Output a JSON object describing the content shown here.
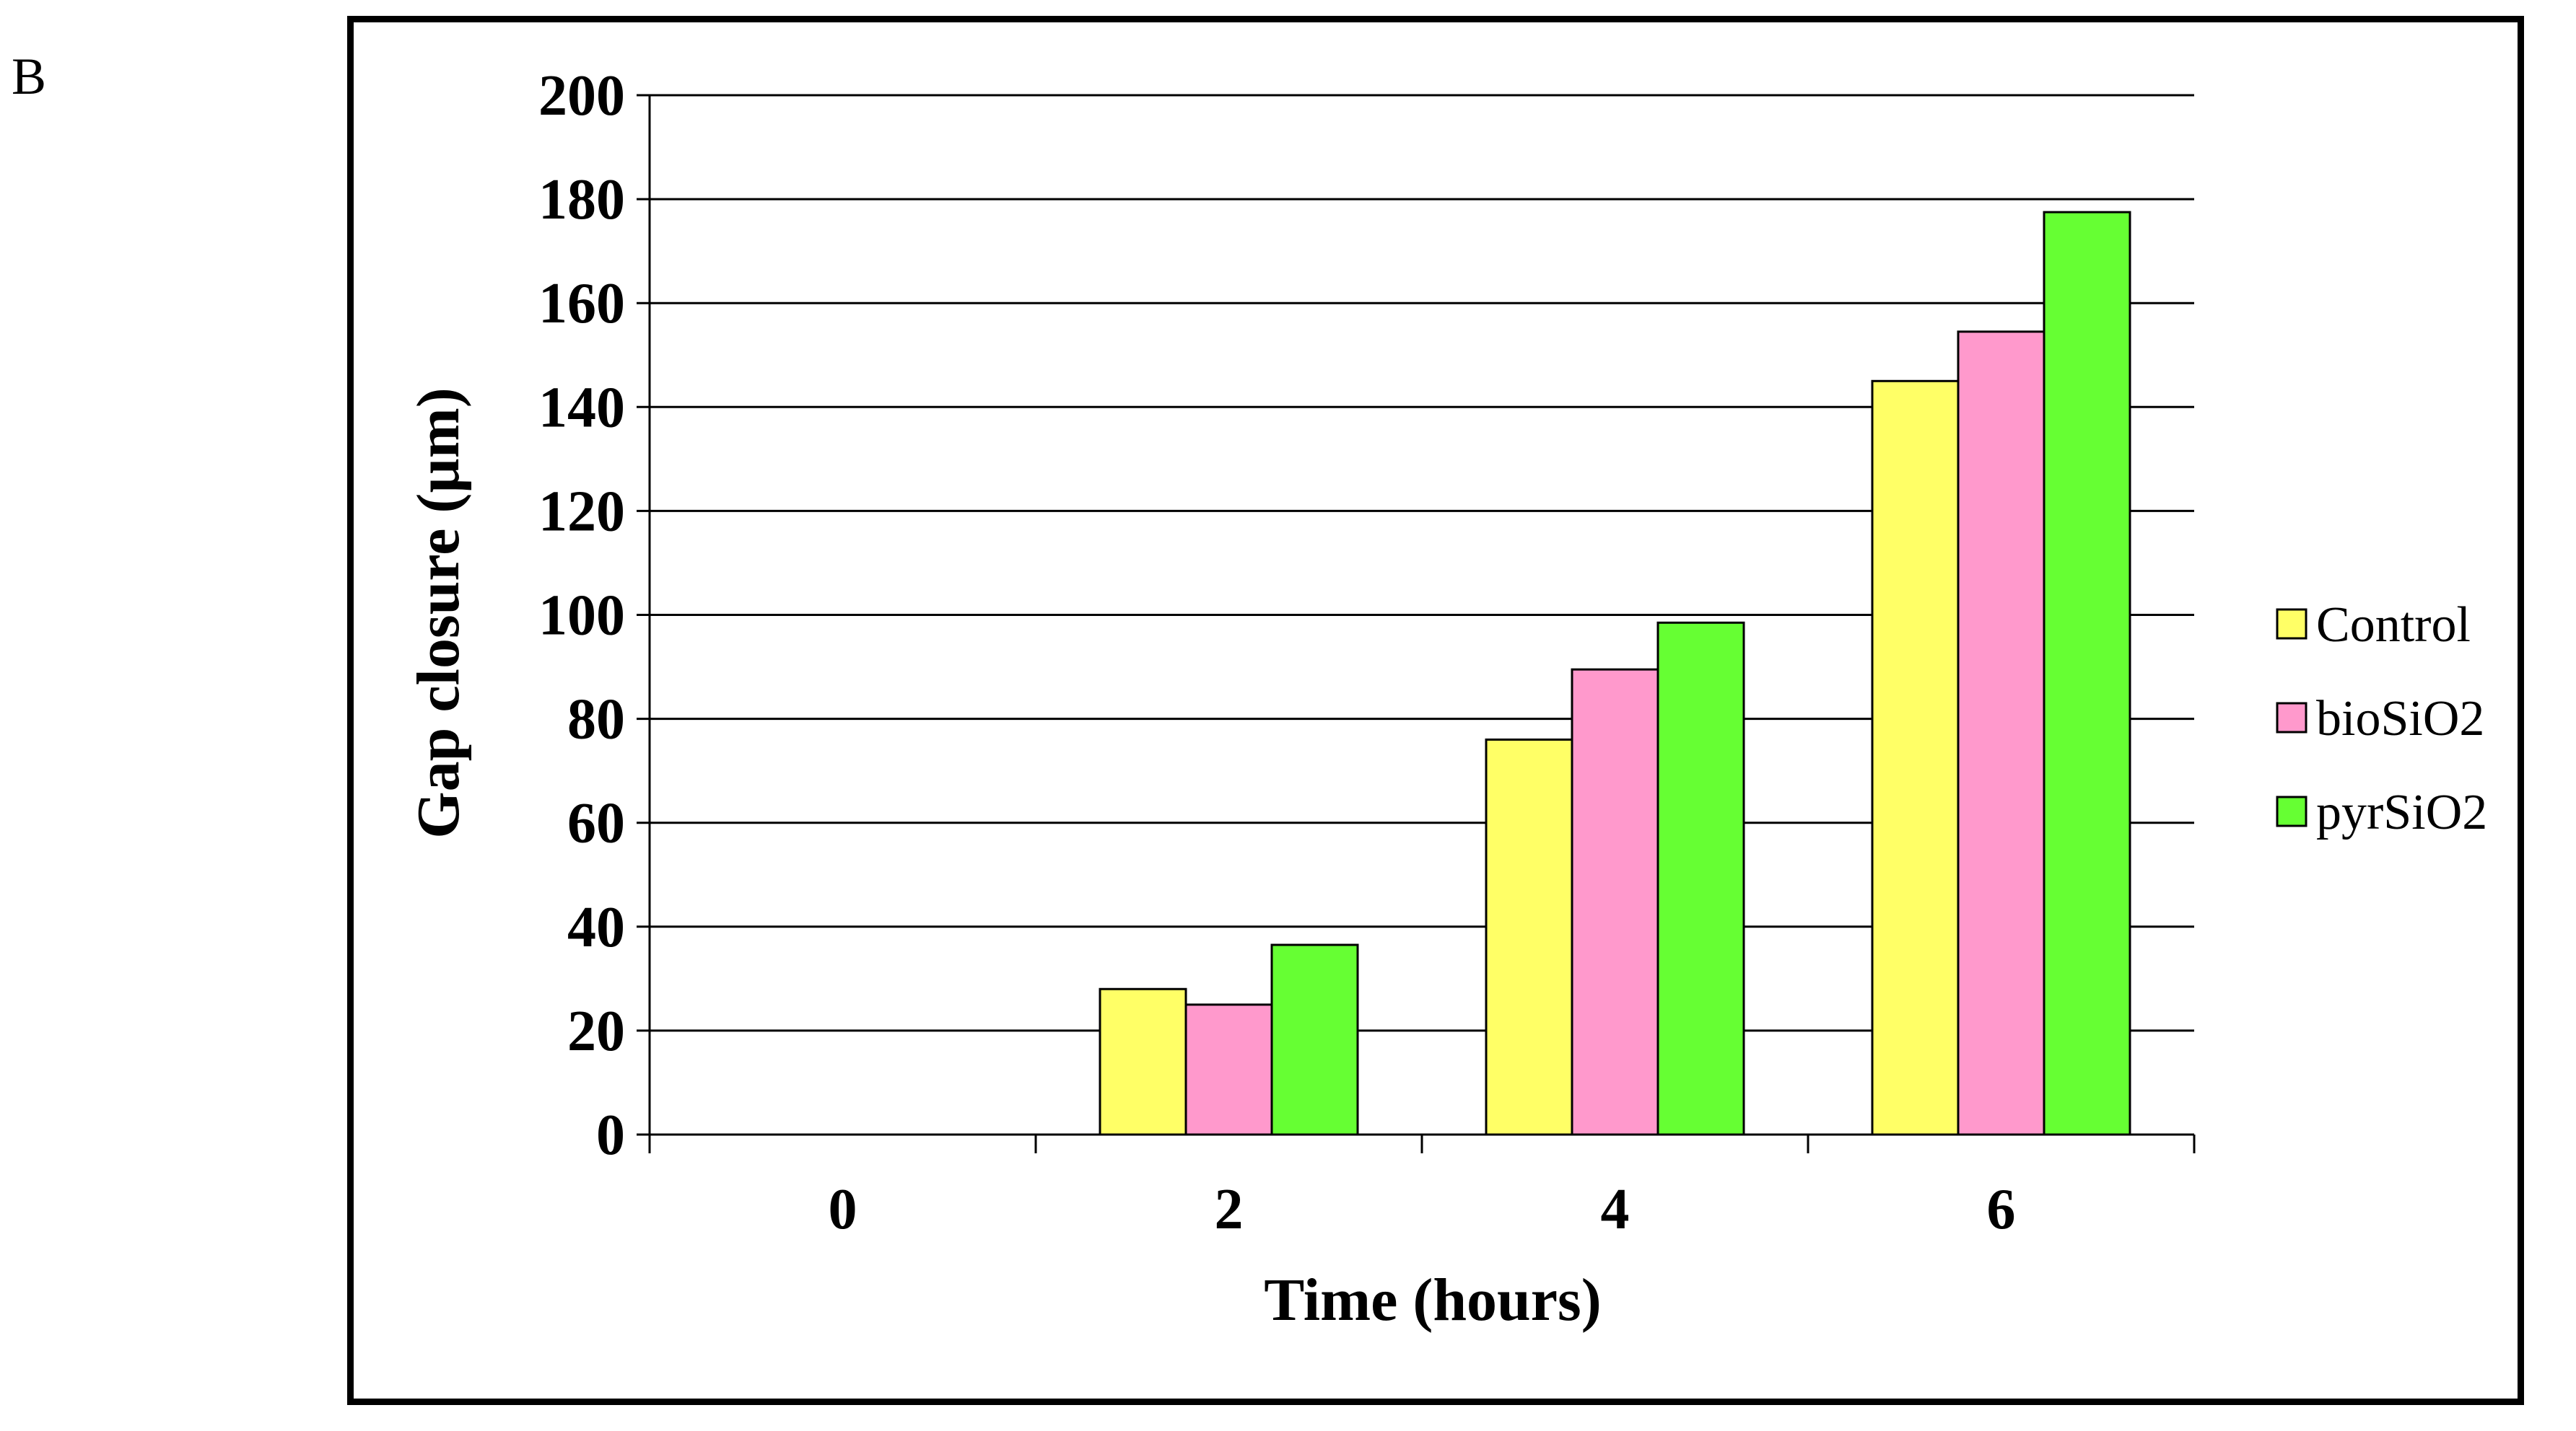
{
  "panel_label": "B",
  "chart_data": {
    "type": "bar",
    "categories": [
      "0",
      "2",
      "4",
      "6"
    ],
    "series": [
      {
        "name": "Control",
        "color": "#FFFF66",
        "values": [
          0,
          28,
          76,
          145
        ]
      },
      {
        "name": "bioSiO2",
        "color": "#FF99CC",
        "values": [
          0,
          25,
          89.5,
          154.5
        ]
      },
      {
        "name": "pyrSiO2",
        "color": "#66FF33",
        "values": [
          0,
          36.5,
          98.5,
          177.5
        ]
      }
    ],
    "xlabel": "Time (hours)",
    "ylabel": "Gap closure (µm)",
    "ylim": [
      0,
      200
    ],
    "yticks": [
      0,
      20,
      40,
      60,
      80,
      100,
      120,
      140,
      160,
      180,
      200
    ],
    "grid": true,
    "legend_position": "right"
  }
}
